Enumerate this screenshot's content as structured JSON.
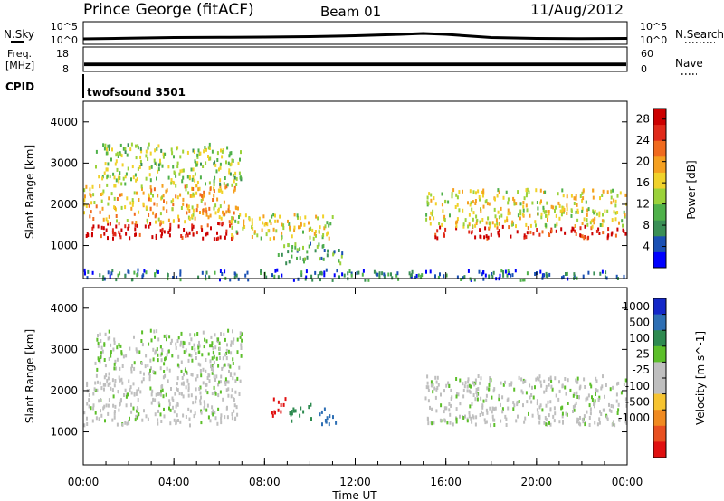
{
  "header": {
    "station": "Prince George (fitACF)",
    "beam": "Beam 01",
    "date": "11/Aug/2012"
  },
  "left_labels": {
    "nsky": "N.Sky",
    "freq_line1": "Freq.",
    "freq_line2": "[MHz]",
    "cpid": "CPID"
  },
  "right_labels": {
    "nsearch": "N.Search",
    "nave": "Nave"
  },
  "cpid_program": "twofsound 3501",
  "colors": {
    "power": [
      "#0000ff",
      "#1a50b4",
      "#3a8f56",
      "#4fb14a",
      "#9bd23a",
      "#f0d22a",
      "#f5a020",
      "#f06a1e",
      "#e02a1a",
      "#cc0000"
    ],
    "velocity": [
      "#1428c8",
      "#2e6fb4",
      "#2e8a50",
      "#5cbf2a",
      "#bfbfbf",
      "#bfbfbf",
      "#f6c431",
      "#f08a20",
      "#e85020",
      "#e01010"
    ],
    "noise_trace": "#000000",
    "freq_trace": "#000000"
  },
  "chart_data": [
    {
      "type": "line",
      "panel": "noise",
      "left_axis_label": "N.Sky",
      "right_axis_label": "N.Search",
      "y_ticks_left": [
        "10^5",
        "10^0"
      ],
      "y_ticks_right": [
        "10^5",
        "10^0"
      ],
      "series": [
        {
          "x": [
            "00:00",
            "02:00",
            "04:00",
            "06:00",
            "08:00",
            "10:00",
            "12:00",
            "14:00",
            "15:00",
            "16:00",
            "18:00",
            "20:00",
            "22:00",
            "24:00"
          ],
          "values": [
            1.2,
            1.35,
            1.5,
            1.55,
            1.6,
            1.7,
            1.9,
            2.2,
            2.4,
            2.2,
            1.5,
            1.3,
            1.25,
            1.3
          ]
        }
      ]
    },
    {
      "type": "line",
      "panel": "frequency",
      "left_axis_label": "Freq. [MHz]",
      "right_axis_label": "Nave",
      "y_ticks_left": [
        "18",
        "8"
      ],
      "y_ticks_right": [
        "60",
        "0"
      ],
      "band_frequency_mhz": [
        10.2,
        11.6
      ]
    },
    {
      "type": "heatmap",
      "panel": "power",
      "ylabel": "Slant Range [km]",
      "yticks": [
        1000,
        2000,
        3000,
        4000
      ],
      "ylim": [
        200,
        4500
      ],
      "colorbar_label": "Power [dB]",
      "colorbar_ticks": [
        4,
        8,
        12,
        16,
        20,
        24,
        28
      ],
      "colorbar_range": [
        0,
        30
      ],
      "x_range_ut_hours": [
        0,
        24
      ],
      "scatter_regions": [
        {
          "t_start_h": 0.0,
          "t_end_h": 6.8,
          "range_start_km": 1200,
          "range_end_km": 1600,
          "value": 28
        },
        {
          "t_start_h": 0.0,
          "t_end_h": 6.8,
          "range_start_km": 1600,
          "range_end_km": 2500,
          "value": 18
        },
        {
          "t_start_h": 0.5,
          "t_end_h": 7.0,
          "range_start_km": 2500,
          "range_end_km": 3500,
          "value": 13
        },
        {
          "t_start_h": 6.5,
          "t_end_h": 11.0,
          "range_start_km": 1200,
          "range_end_km": 1800,
          "value": 16
        },
        {
          "t_start_h": 8.5,
          "t_end_h": 11.5,
          "range_start_km": 600,
          "range_end_km": 1100,
          "value": 10
        },
        {
          "t_start_h": 15.5,
          "t_end_h": 24.0,
          "range_start_km": 1200,
          "range_end_km": 1500,
          "value": 27
        },
        {
          "t_start_h": 15.0,
          "t_end_h": 24.0,
          "range_start_km": 1500,
          "range_end_km": 2400,
          "value": 16
        },
        {
          "t_start_h": 0.0,
          "t_end_h": 24.0,
          "range_start_km": 200,
          "range_end_km": 450,
          "value": 6
        }
      ]
    },
    {
      "type": "heatmap",
      "panel": "velocity",
      "xlabel": "Time UT",
      "ylabel": "Slant Range [km]",
      "yticks": [
        1000,
        2000,
        3000,
        4000
      ],
      "ylim": [
        200,
        4500
      ],
      "colorbar_label": "Velocity [m s^-1]",
      "colorbar_ticks": [
        1000,
        500,
        100,
        25,
        -25,
        -100,
        -500,
        -1000
      ],
      "x_tick_labels": [
        "00:00",
        "04:00",
        "08:00",
        "12:00",
        "16:00",
        "20:00",
        "00:00"
      ],
      "x_range_ut_hours": [
        0,
        24
      ],
      "scatter_regions": [
        {
          "t_start_h": 0.0,
          "t_end_h": 7.0,
          "range_start_km": 1200,
          "range_end_km": 2500,
          "value": 0
        },
        {
          "t_start_h": 0.5,
          "t_end_h": 7.0,
          "range_start_km": 2500,
          "range_end_km": 3500,
          "value": 10
        },
        {
          "t_start_h": 8.3,
          "t_end_h": 9.0,
          "range_start_km": 1400,
          "range_end_km": 1900,
          "value": -800
        },
        {
          "t_start_h": 9.0,
          "t_end_h": 10.2,
          "range_start_km": 1300,
          "range_end_km": 1700,
          "value": 150
        },
        {
          "t_start_h": 10.2,
          "t_end_h": 11.2,
          "range_start_km": 1200,
          "range_end_km": 1600,
          "value": 700
        },
        {
          "t_start_h": 15.0,
          "t_end_h": 24.0,
          "range_start_km": 1200,
          "range_end_km": 2400,
          "value": 0
        }
      ]
    }
  ]
}
